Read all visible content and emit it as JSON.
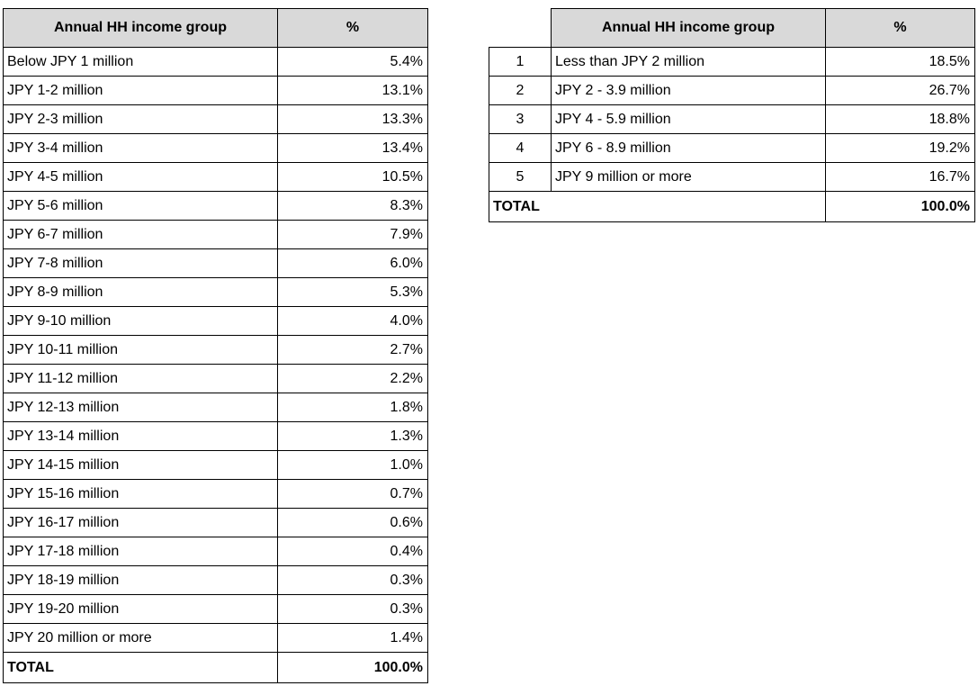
{
  "colors": {
    "header_bg": "#d9d9d9",
    "border": "#000000",
    "text": "#000000",
    "page_bg": "#ffffff"
  },
  "left_table": {
    "headers": {
      "group": "Annual HH income group",
      "pct": "%"
    },
    "rows": [
      {
        "group": "Below JPY 1 million",
        "pct": "5.4%"
      },
      {
        "group": "JPY 1-2 million",
        "pct": "13.1%"
      },
      {
        "group": "JPY 2-3 million",
        "pct": "13.3%"
      },
      {
        "group": "JPY 3-4 million",
        "pct": "13.4%"
      },
      {
        "group": "JPY 4-5 million",
        "pct": "10.5%"
      },
      {
        "group": "JPY 5-6 million",
        "pct": "8.3%"
      },
      {
        "group": "JPY 6-7 million",
        "pct": "7.9%"
      },
      {
        "group": "JPY 7-8 million",
        "pct": "6.0%"
      },
      {
        "group": "JPY 8-9 million",
        "pct": "5.3%"
      },
      {
        "group": "JPY 9-10 million",
        "pct": "4.0%"
      },
      {
        "group": "JPY 10-11 million",
        "pct": "2.7%"
      },
      {
        "group": "JPY 11-12 million",
        "pct": "2.2%"
      },
      {
        "group": "JPY 12-13 million",
        "pct": "1.8%"
      },
      {
        "group": "JPY 13-14 million",
        "pct": "1.3%"
      },
      {
        "group": "JPY 14-15 million",
        "pct": "1.0%"
      },
      {
        "group": "JPY 15-16 million",
        "pct": "0.7%"
      },
      {
        "group": "JPY 16-17 million",
        "pct": "0.6%"
      },
      {
        "group": "JPY 17-18 million",
        "pct": "0.4%"
      },
      {
        "group": "JPY 18-19 million",
        "pct": "0.3%"
      },
      {
        "group": "JPY 19-20 million",
        "pct": "0.3%"
      },
      {
        "group": "JPY 20 million or more",
        "pct": "1.4%"
      }
    ],
    "total": {
      "label": "TOTAL",
      "pct": "100.0%"
    }
  },
  "right_table": {
    "headers": {
      "group": "Annual HH income group",
      "pct": "%"
    },
    "rows": [
      {
        "num": "1",
        "group": "Less than JPY 2 million",
        "pct": "18.5%"
      },
      {
        "num": "2",
        "group": "JPY 2 - 3.9 million",
        "pct": "26.7%"
      },
      {
        "num": "3",
        "group": "JPY 4 - 5.9 million",
        "pct": "18.8%"
      },
      {
        "num": "4",
        "group": "JPY 6 - 8.9 million",
        "pct": "19.2%"
      },
      {
        "num": "5",
        "group": "JPY 9 million or more",
        "pct": "16.7%"
      }
    ],
    "total": {
      "label": "TOTAL",
      "pct": "100.0%"
    }
  }
}
